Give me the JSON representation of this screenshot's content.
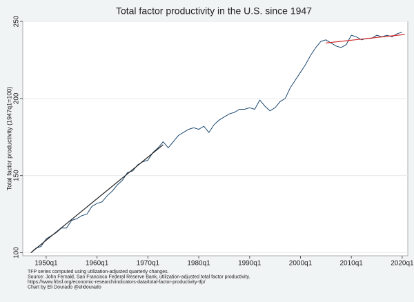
{
  "chart_data": {
    "type": "line",
    "title": "Total factor productivity in the U.S. since 1947",
    "y_label": "Total factor productivity (1947q1=100)",
    "notes": [
      "TFP series computed using utilization-adjusted quarterly changes.",
      "Source: John Fernald, San Francisco Federal Reserve Bank, utilization-adjusted total factor productivity.",
      "https://www.frbsf.org/economic-research/indicators-data/total-factor-productivity-tfp/",
      "Chart by Eli Dourado @elidourado"
    ],
    "xlim": [
      1945.4,
      2021.1
    ],
    "ylim": [
      98,
      250
    ],
    "xticks": [
      {
        "value": 1950,
        "label": "1950q1"
      },
      {
        "value": 1960,
        "label": "1960q1"
      },
      {
        "value": 1970,
        "label": "1970q1"
      },
      {
        "value": 1980,
        "label": "1980q1"
      },
      {
        "value": 1990,
        "label": "1990q1"
      },
      {
        "value": 2000,
        "label": "2000q1"
      },
      {
        "value": 2010,
        "label": "2010q1"
      },
      {
        "value": 2020,
        "label": "2020q1"
      }
    ],
    "yticks": [
      100,
      150,
      200,
      250
    ],
    "grid": true,
    "series": [
      {
        "color": "#1a476f",
        "x": [
          1947,
          1948,
          1949,
          1950,
          1951,
          1952,
          1953,
          1954,
          1955,
          1956,
          1957,
          1958,
          1959,
          1960,
          1961,
          1962,
          1963,
          1964,
          1965,
          1966,
          1967,
          1968,
          1969,
          1970,
          1971,
          1972,
          1973,
          1974,
          1975,
          1976,
          1977,
          1978,
          1979,
          1980,
          1981,
          1982,
          1983,
          1984,
          1985,
          1986,
          1987,
          1988,
          1989,
          1990,
          1991,
          1992,
          1993,
          1994,
          1995,
          1996,
          1997,
          1998,
          1999,
          2000,
          2001,
          2002,
          2003,
          2004,
          2005,
          2006,
          2007,
          2008,
          2009,
          2010,
          2011,
          2012,
          2013,
          2014,
          2015,
          2016,
          2017,
          2018,
          2019,
          2020
        ],
        "values": [
          100,
          103,
          104,
          109,
          111,
          113,
          116,
          116,
          121,
          122,
          124,
          125,
          130,
          132,
          133,
          137,
          140,
          144,
          147,
          152,
          153,
          157,
          159,
          160,
          165,
          168,
          172,
          168,
          172,
          176,
          178,
          180,
          181,
          180,
          182,
          178,
          183,
          186,
          188,
          190,
          191,
          193,
          193,
          194,
          193,
          199,
          195,
          192,
          194,
          198,
          200,
          207,
          212,
          217,
          222,
          228,
          233,
          237,
          238,
          236,
          234,
          233,
          235,
          241,
          240,
          238,
          239,
          239,
          241,
          240,
          241,
          240,
          242,
          243
        ]
      },
      {
        "color": "#222222",
        "x": [
          1947,
          1973
        ],
        "values": [
          100,
          170
        ]
      },
      {
        "color": "#d62728",
        "x": [
          2005,
          2020.5
        ],
        "values": [
          236,
          241.5
        ]
      }
    ]
  }
}
